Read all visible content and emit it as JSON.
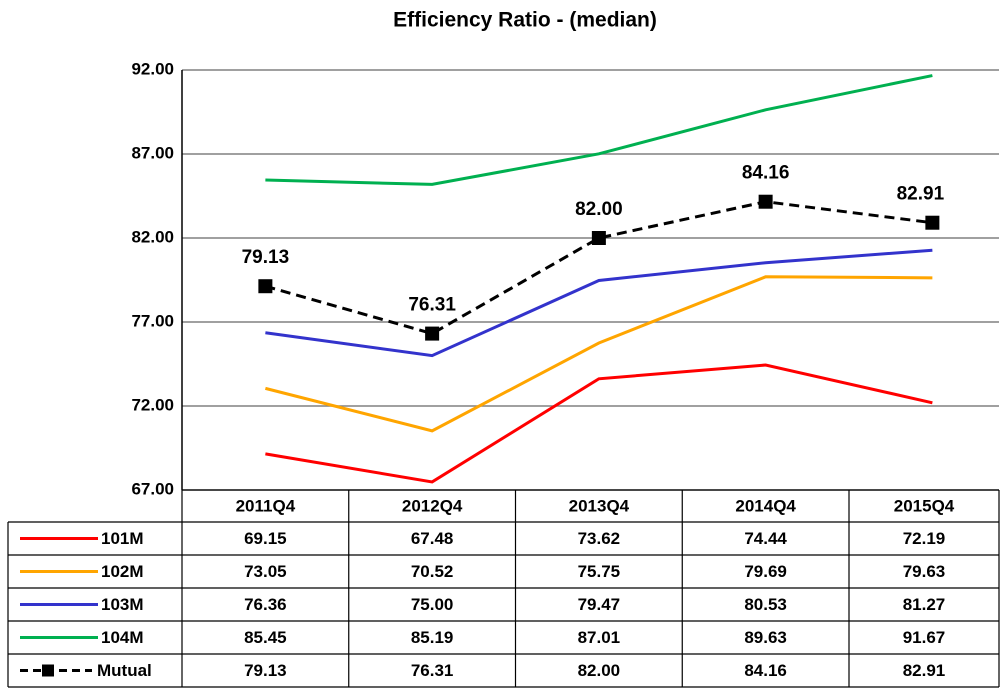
{
  "chart_data": {
    "type": "line",
    "title": "Efficiency Ratio  - (median)",
    "categories": [
      "2011Q4",
      "2012Q4",
      "2013Q4",
      "2014Q4",
      "2015Q4"
    ],
    "ylim": [
      67,
      92
    ],
    "yticks": [
      {
        "value": 67,
        "label": "67.00"
      },
      {
        "value": 72,
        "label": "72.00"
      },
      {
        "value": 77,
        "label": "77.00"
      },
      {
        "value": 82,
        "label": "82.00"
      },
      {
        "value": 87,
        "label": "87.00"
      },
      {
        "value": 92,
        "label": "92.00"
      }
    ],
    "grid": true,
    "series": [
      {
        "name": "101M",
        "color": "#ff0000",
        "values": [
          69.15,
          67.48,
          73.62,
          74.44,
          72.19
        ],
        "value_labels": [
          "69.15",
          "67.48",
          "73.62",
          "74.44",
          "72.19"
        ]
      },
      {
        "name": "102M",
        "color": "#ffa500",
        "values": [
          73.05,
          70.52,
          75.75,
          79.69,
          79.63
        ],
        "value_labels": [
          "73.05",
          "70.52",
          "75.75",
          "79.69",
          "79.63"
        ]
      },
      {
        "name": "103M",
        "color": "#3333cc",
        "values": [
          76.36,
          75.0,
          79.47,
          80.53,
          81.27
        ],
        "value_labels": [
          "76.36",
          "75.00",
          "79.47",
          "80.53",
          "81.27"
        ]
      },
      {
        "name": "104M",
        "color": "#00b050",
        "values": [
          85.45,
          85.19,
          87.01,
          89.63,
          91.67
        ],
        "value_labels": [
          "85.45",
          "85.19",
          "87.01",
          "89.63",
          "91.67"
        ]
      },
      {
        "name": "Mutual",
        "color": "#000000",
        "dashed": true,
        "markers": true,
        "data_labels": true,
        "values": [
          79.13,
          76.31,
          82.0,
          84.16,
          82.91
        ],
        "value_labels": [
          "79.13",
          "76.31",
          "82.00",
          "84.16",
          "82.91"
        ]
      }
    ]
  }
}
